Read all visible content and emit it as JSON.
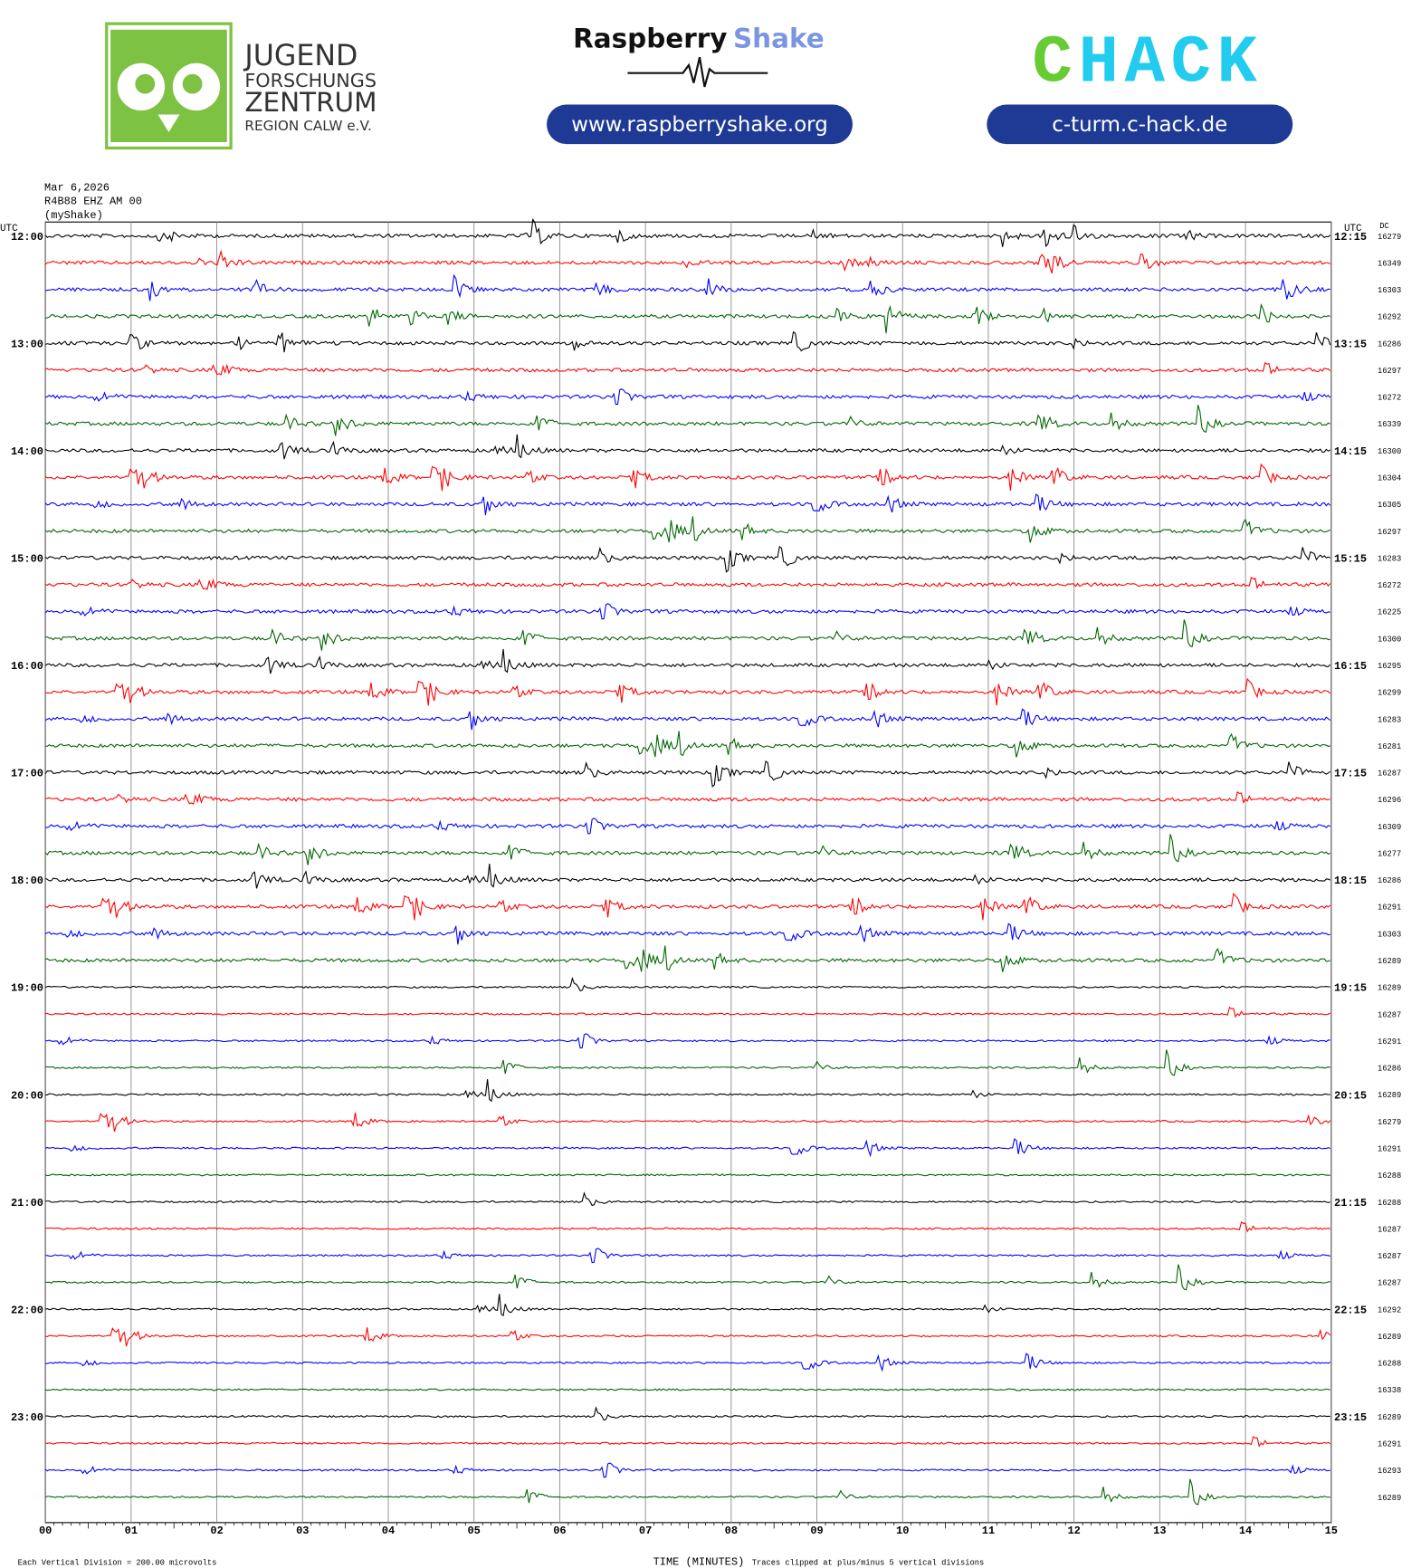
{
  "header": {
    "jfz": [
      "JUGEND",
      "FORSCHUNGS",
      "ZENTRUM",
      "REGION CALW e.V."
    ],
    "rs_name": "Raspberry",
    "rs_shake": "Shake",
    "rs_url": "www.raspberryshake.org",
    "chack_c": "C",
    "chack_rest": "HACK",
    "chack_url": "c-turm.c-hack.de"
  },
  "chart_data": {
    "type": "helicorder",
    "date": "Mar 6,2026",
    "station": "R4B88 EHZ AM 00",
    "source": "(myShake)",
    "utc_left": "UTC",
    "utc_right": "UTC",
    "dc_header": "DC",
    "colors": [
      "#000000",
      "#ff0000",
      "#0000ff",
      "#006600"
    ],
    "left_labels": [
      "12:00",
      "13:00",
      "14:00",
      "15:00",
      "16:00",
      "17:00",
      "18:00",
      "19:00",
      "20:00",
      "21:00",
      "22:00",
      "23:00"
    ],
    "right_labels": [
      "12:15",
      "13:15",
      "14:15",
      "15:15",
      "16:15",
      "17:15",
      "18:15",
      "19:15",
      "20:15",
      "21:15",
      "22:15",
      "23:15"
    ],
    "dc_values": [
      16279,
      16349,
      16303,
      16292,
      16286,
      16297,
      16272,
      16339,
      16300,
      16304,
      16305,
      16297,
      16283,
      16272,
      16225,
      16300,
      16295,
      16299,
      16283,
      16281,
      16287,
      16296,
      16309,
      16277,
      16286,
      16291,
      16303,
      16289,
      16289,
      16287,
      16291,
      16286,
      16289,
      16279,
      16291,
      16288,
      16288,
      16287,
      16287,
      16287,
      16292,
      16289,
      16288,
      16338,
      16289,
      16291,
      16293,
      16289
    ],
    "xlim": [
      0,
      15
    ],
    "xticks": [
      {
        "value": 0,
        "label": "00"
      },
      {
        "value": 1,
        "label": "01"
      },
      {
        "value": 2,
        "label": "02"
      },
      {
        "value": 3,
        "label": "03"
      },
      {
        "value": 4,
        "label": "04"
      },
      {
        "value": 5,
        "label": "05"
      },
      {
        "value": 6,
        "label": "06"
      },
      {
        "value": 7,
        "label": "07"
      },
      {
        "value": 8,
        "label": "08"
      },
      {
        "value": 9,
        "label": "09"
      },
      {
        "value": 10,
        "label": "10"
      },
      {
        "value": 11,
        "label": "11"
      },
      {
        "value": 12,
        "label": "12"
      },
      {
        "value": 13,
        "label": "13"
      },
      {
        "value": 14,
        "label": "14"
      },
      {
        "value": 15,
        "label": "15"
      }
    ],
    "xlabel": "TIME (MINUTES)",
    "division_note": "Each Vertical Division =  200.00 microvolts",
    "clip_note": "Traces clipped at plus/minus 5 vertical divisions"
  }
}
